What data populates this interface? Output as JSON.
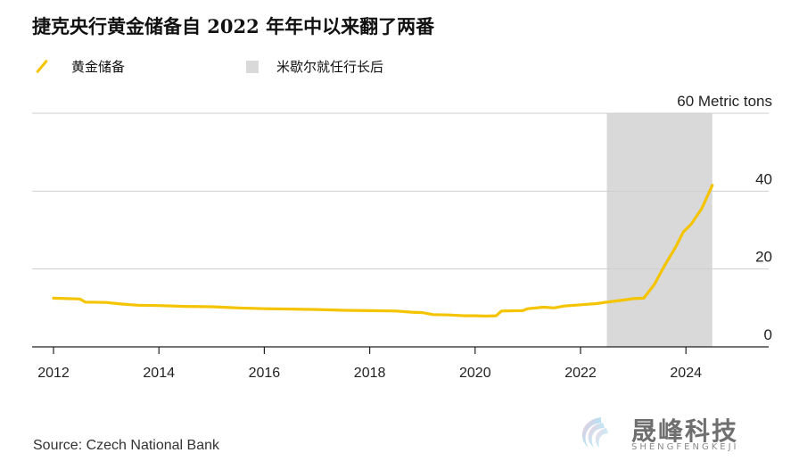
{
  "title": "捷克央行黄金储备自 2022 年年中以来翻了两番",
  "legend": {
    "series_label": "黄金储备",
    "shade_label": "米歇尔就任行长后"
  },
  "source": "Source: Czech National Bank",
  "watermark": {
    "name": "晟峰科技",
    "sub": "SHENGFENGKEJI"
  },
  "colors": {
    "line": "#f5c400",
    "shade": "#d9d9d9",
    "grid": "#cfcfcf",
    "axis": "#222222"
  },
  "chart_data": {
    "type": "line",
    "title": "捷克央行黄金储备自 2022 年年中以来翻了两番",
    "xlabel": "",
    "ylabel": "60 Metric tons",
    "xlim": [
      2012,
      2025.5
    ],
    "ylim": [
      0,
      60
    ],
    "x_ticks": [
      "2012",
      "2014",
      "2016",
      "2018",
      "2020",
      "2022",
      "2024"
    ],
    "y_ticks": [
      "0",
      "20",
      "40",
      "60 Metric tons"
    ],
    "y_tick_values": [
      0,
      20,
      40,
      60
    ],
    "x_tick_values": [
      2012,
      2014,
      2016,
      2018,
      2020,
      2022,
      2024
    ],
    "shaded_region": {
      "label": "米歇尔就任行长后",
      "x_start": 2022.5,
      "x_end": 2024.5
    },
    "series": [
      {
        "name": "黄金储备",
        "points": [
          [
            2012.0,
            12.5
          ],
          [
            2012.5,
            12.3
          ],
          [
            2012.6,
            11.5
          ],
          [
            2013.0,
            11.4
          ],
          [
            2013.3,
            11.0
          ],
          [
            2013.6,
            10.7
          ],
          [
            2014.0,
            10.6
          ],
          [
            2014.5,
            10.4
          ],
          [
            2015.0,
            10.3
          ],
          [
            2015.5,
            10.0
          ],
          [
            2016.0,
            9.8
          ],
          [
            2016.5,
            9.7
          ],
          [
            2017.0,
            9.6
          ],
          [
            2017.5,
            9.4
          ],
          [
            2018.0,
            9.3
          ],
          [
            2018.5,
            9.2
          ],
          [
            2018.8,
            8.9
          ],
          [
            2019.0,
            8.8
          ],
          [
            2019.2,
            8.3
          ],
          [
            2019.5,
            8.2
          ],
          [
            2019.8,
            8.0
          ],
          [
            2020.0,
            8.0
          ],
          [
            2020.2,
            7.9
          ],
          [
            2020.4,
            8.0
          ],
          [
            2020.5,
            9.2
          ],
          [
            2020.9,
            9.3
          ],
          [
            2021.0,
            9.8
          ],
          [
            2021.3,
            10.2
          ],
          [
            2021.5,
            10.0
          ],
          [
            2021.7,
            10.5
          ],
          [
            2021.9,
            10.7
          ],
          [
            2022.0,
            10.8
          ],
          [
            2022.3,
            11.1
          ],
          [
            2022.5,
            11.5
          ],
          [
            2022.8,
            12.0
          ],
          [
            2023.0,
            12.4
          ],
          [
            2023.2,
            12.5
          ],
          [
            2023.4,
            16.0
          ],
          [
            2023.6,
            21.0
          ],
          [
            2023.8,
            25.5
          ],
          [
            2023.95,
            29.5
          ],
          [
            2024.1,
            31.5
          ],
          [
            2024.3,
            35.5
          ],
          [
            2024.5,
            41.5
          ]
        ]
      }
    ]
  }
}
